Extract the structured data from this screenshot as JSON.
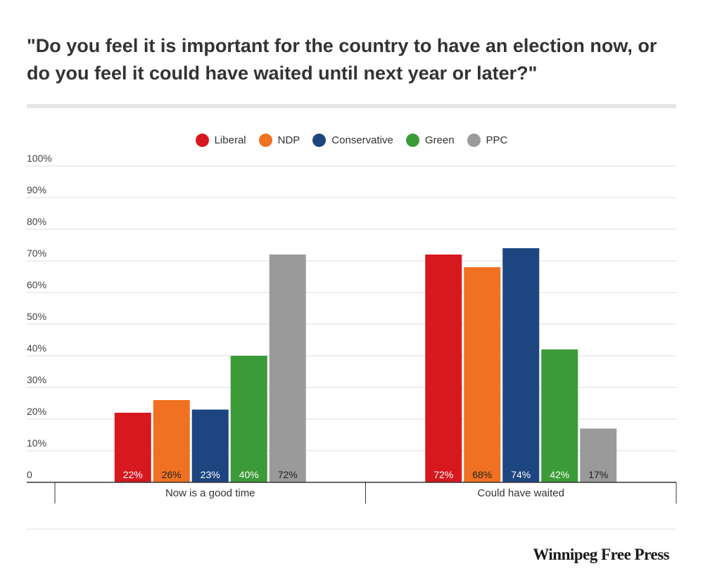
{
  "title": "\"Do you feel it is important for the country to have an election now, or do you feel it could have waited until next year or later?\"",
  "brand": "Winnipeg Free Press",
  "chart_data": {
    "type": "bar",
    "categories": [
      "Now is a good time",
      "Could have waited"
    ],
    "series": [
      {
        "name": "Liberal",
        "color": "#d7191f",
        "values": [
          22,
          72
        ],
        "labels": [
          "22%",
          "72%"
        ],
        "label_color": "#ffffff"
      },
      {
        "name": "NDP",
        "color": "#f07122",
        "values": [
          26,
          68
        ],
        "labels": [
          "26%",
          "68%"
        ],
        "label_color": "#222222"
      },
      {
        "name": "Conservative",
        "color": "#1d4580",
        "values": [
          23,
          74
        ],
        "labels": [
          "23%",
          "74%"
        ],
        "label_color": "#ffffff"
      },
      {
        "name": "Green",
        "color": "#3b9b38",
        "values": [
          40,
          42
        ],
        "labels": [
          "40%",
          "42%"
        ],
        "label_color": "#ffffff"
      },
      {
        "name": "PPC",
        "color": "#9a9a9a",
        "values": [
          72,
          17
        ],
        "labels": [
          "72%",
          "17%"
        ],
        "label_color": "#222222"
      }
    ],
    "ylim": [
      0,
      100
    ],
    "yticks": [
      0,
      10,
      20,
      30,
      40,
      50,
      60,
      70,
      80,
      90,
      100
    ],
    "ytick_labels": [
      "0",
      "10%",
      "20%",
      "30%",
      "40%",
      "50%",
      "60%",
      "70%",
      "80%",
      "90%",
      "100%"
    ],
    "legend_position": "top-center",
    "grid": true,
    "xlabel": "",
    "ylabel": ""
  }
}
